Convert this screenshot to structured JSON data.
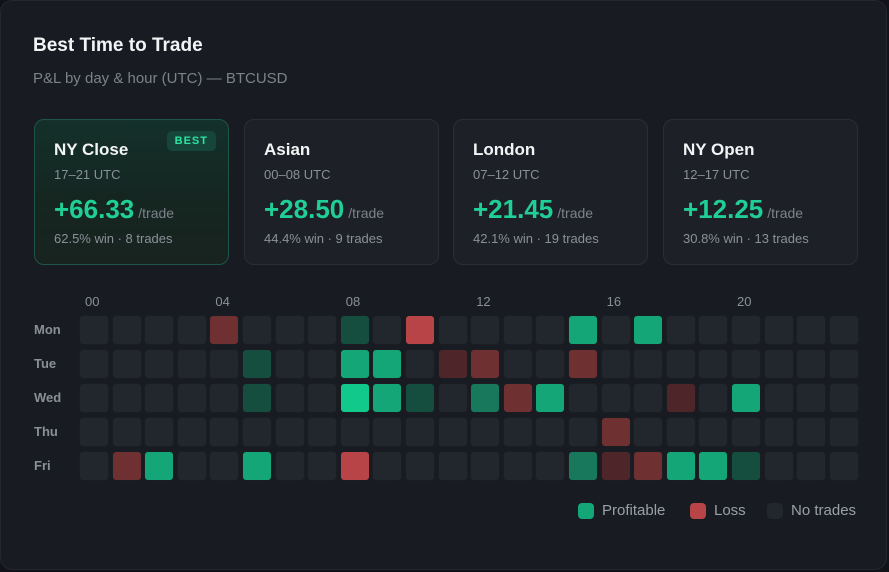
{
  "header": {
    "title": "Best Time to Trade",
    "subtitle": "P&L by day & hour (UTC) — BTCUSD"
  },
  "sessions": [
    {
      "name": "NY Close",
      "hours": "17–21 UTC",
      "pnl": "+66.33",
      "unit": "/trade",
      "stats": "62.5% win · 8 trades",
      "badge": "BEST",
      "best": true
    },
    {
      "name": "Asian",
      "hours": "00–08 UTC",
      "pnl": "+28.50",
      "unit": "/trade",
      "stats": "44.4% win · 9 trades",
      "best": false
    },
    {
      "name": "London",
      "hours": "07–12 UTC",
      "pnl": "+21.45",
      "unit": "/trade",
      "stats": "42.1% win · 19 trades",
      "best": false
    },
    {
      "name": "NY Open",
      "hours": "12–17 UTC",
      "pnl": "+12.25",
      "unit": "/trade",
      "stats": "30.8% win · 13 trades",
      "best": false
    }
  ],
  "heatmap": {
    "hour_labels": [
      "00",
      "04",
      "08",
      "12",
      "16",
      "20"
    ],
    "hour_label_hours": [
      0,
      4,
      8,
      12,
      16,
      20
    ],
    "days": [
      "Mon",
      "Tue",
      "Wed",
      "Thu",
      "Fri"
    ],
    "hours_count": 24,
    "cells": [
      {
        "day": 0,
        "hour": 4,
        "type": "loss",
        "level": 2
      },
      {
        "day": 0,
        "hour": 8,
        "type": "profit",
        "level": 1
      },
      {
        "day": 0,
        "hour": 10,
        "type": "loss",
        "level": 3
      },
      {
        "day": 0,
        "hour": 15,
        "type": "profit",
        "level": 3
      },
      {
        "day": 0,
        "hour": 17,
        "type": "profit",
        "level": 3
      },
      {
        "day": 1,
        "hour": 5,
        "type": "profit",
        "level": 1
      },
      {
        "day": 1,
        "hour": 8,
        "type": "profit",
        "level": 3
      },
      {
        "day": 1,
        "hour": 9,
        "type": "profit",
        "level": 3
      },
      {
        "day": 1,
        "hour": 11,
        "type": "loss",
        "level": 1
      },
      {
        "day": 1,
        "hour": 12,
        "type": "loss",
        "level": 2
      },
      {
        "day": 1,
        "hour": 15,
        "type": "loss",
        "level": 2
      },
      {
        "day": 2,
        "hour": 5,
        "type": "profit",
        "level": 1
      },
      {
        "day": 2,
        "hour": 8,
        "type": "profit",
        "level": 4
      },
      {
        "day": 2,
        "hour": 9,
        "type": "profit",
        "level": 3
      },
      {
        "day": 2,
        "hour": 10,
        "type": "profit",
        "level": 1
      },
      {
        "day": 2,
        "hour": 12,
        "type": "profit",
        "level": 2
      },
      {
        "day": 2,
        "hour": 13,
        "type": "loss",
        "level": 2
      },
      {
        "day": 2,
        "hour": 14,
        "type": "profit",
        "level": 3
      },
      {
        "day": 2,
        "hour": 18,
        "type": "loss",
        "level": 1
      },
      {
        "day": 2,
        "hour": 20,
        "type": "profit",
        "level": 3
      },
      {
        "day": 3,
        "hour": 16,
        "type": "loss",
        "level": 2
      },
      {
        "day": 4,
        "hour": 1,
        "type": "loss",
        "level": 2
      },
      {
        "day": 4,
        "hour": 2,
        "type": "profit",
        "level": 3
      },
      {
        "day": 4,
        "hour": 5,
        "type": "profit",
        "level": 3
      },
      {
        "day": 4,
        "hour": 8,
        "type": "loss",
        "level": 3
      },
      {
        "day": 4,
        "hour": 15,
        "type": "profit",
        "level": 2
      },
      {
        "day": 4,
        "hour": 16,
        "type": "loss",
        "level": 1
      },
      {
        "day": 4,
        "hour": 17,
        "type": "loss",
        "level": 2
      },
      {
        "day": 4,
        "hour": 18,
        "type": "profit",
        "level": 3
      },
      {
        "day": 4,
        "hour": 19,
        "type": "profit",
        "level": 3
      },
      {
        "day": 4,
        "hour": 20,
        "type": "profit",
        "level": 1
      }
    ]
  },
  "legend": [
    {
      "label": "Profitable",
      "color": "#15a678"
    },
    {
      "label": "Loss",
      "color": "#b84448"
    },
    {
      "label": "No trades",
      "color": "#22262d"
    }
  ],
  "colors": {
    "empty": "#22262d",
    "profit": [
      "#1e3a33",
      "#154d3f",
      "#17785b",
      "#15a678",
      "#10c98a"
    ],
    "loss": [
      "#3a2226",
      "#4e2629",
      "#6f3032",
      "#b84448",
      "#d04a4e"
    ]
  }
}
